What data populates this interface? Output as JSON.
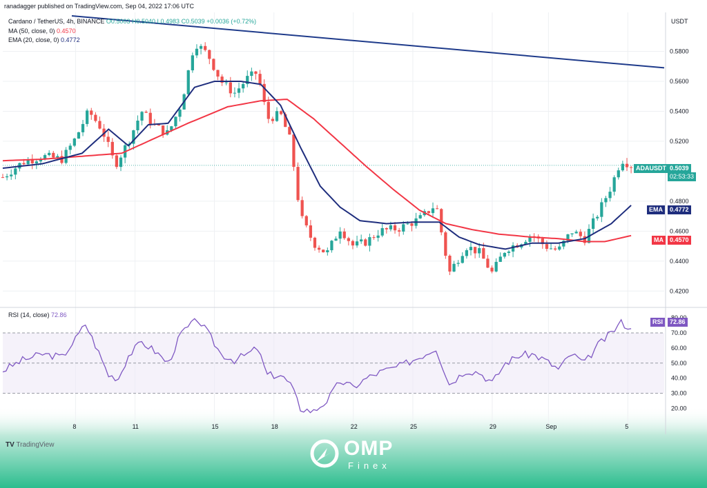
{
  "watermark": {
    "publisher": "ranadagger published on TradingView.com, Sep 04, 2022 17:06 UTC",
    "tv_logo_text": "TradingView",
    "brand_main": "OMP",
    "brand_sub": "Finex"
  },
  "legend": {
    "symbol": "Cardano / TetherUS, 4h, BINANCE",
    "o": "O0.5003",
    "h": "H0.5040",
    "l": "L0.4983",
    "c": "C0.5039",
    "change": "+0.0036 (+0.72%)",
    "ma_label": "MA (50, close, 0)",
    "ma_value": "0.4570",
    "ema_label": "EMA (20, close, 0)",
    "ema_value": "0.4772",
    "rsi_label": "RSI (14, close)",
    "rsi_value": "72.86"
  },
  "tags": {
    "price_symbol": "ADAUSDT",
    "price_value": "0.5039",
    "countdown": "02:53:33",
    "ema_name": "EMA",
    "ema_value": "0.4772",
    "ma_name": "MA",
    "ma_value": "0.4570",
    "rsi_name": "RSI",
    "rsi_value": "72.86"
  },
  "colors": {
    "up": "#26a69a",
    "down": "#ef5350",
    "ma": "#f23645",
    "ema": "#1e2d7d",
    "trendline": "#1e3a8a",
    "rsi": "#7e57c2",
    "band_fill": "#ede7f6",
    "footer_teal": "#2bbd8e"
  },
  "chart_data": [
    {
      "type": "candlestick",
      "currency_label": "USDT",
      "ylim": [
        0.41,
        0.606
      ],
      "y_ticks": [
        0.42,
        0.44,
        0.46,
        0.48,
        0.5,
        0.52,
        0.54,
        0.56,
        0.58
      ],
      "y_tick_labels": [
        "0.4200",
        "0.4400",
        "0.4600",
        "0.4800",
        "0.5000",
        "0.5200",
        "0.5400",
        "0.5600",
        "0.5800"
      ],
      "x_dates": [
        "8",
        "11",
        "15",
        "18",
        "22",
        "25",
        "29",
        "Sep",
        "5"
      ],
      "last_price": 0.5039,
      "trendline": [
        {
          "t": 0.0,
          "price": 0.608
        },
        {
          "t": 1.0,
          "price": 0.569
        }
      ],
      "keypoints": [
        {
          "t": 0.0,
          "price": 0.496
        },
        {
          "t": 0.03,
          "price": 0.506
        },
        {
          "t": 0.06,
          "price": 0.51
        },
        {
          "t": 0.09,
          "price": 0.508
        },
        {
          "t": 0.11,
          "price": 0.522
        },
        {
          "t": 0.13,
          "price": 0.54
        },
        {
          "t": 0.15,
          "price": 0.528
        },
        {
          "t": 0.17,
          "price": 0.504
        },
        {
          "t": 0.19,
          "price": 0.52
        },
        {
          "t": 0.21,
          "price": 0.54
        },
        {
          "t": 0.23,
          "price": 0.53
        },
        {
          "t": 0.25,
          "price": 0.525
        },
        {
          "t": 0.27,
          "price": 0.545
        },
        {
          "t": 0.29,
          "price": 0.586
        },
        {
          "t": 0.31,
          "price": 0.578
        },
        {
          "t": 0.33,
          "price": 0.56
        },
        {
          "t": 0.35,
          "price": 0.552
        },
        {
          "t": 0.37,
          "price": 0.562
        },
        {
          "t": 0.385,
          "price": 0.566
        },
        {
          "t": 0.4,
          "price": 0.535
        },
        {
          "t": 0.42,
          "price": 0.538
        },
        {
          "t": 0.435,
          "price": 0.52
        },
        {
          "t": 0.45,
          "price": 0.47
        },
        {
          "t": 0.47,
          "price": 0.452
        },
        {
          "t": 0.49,
          "price": 0.445
        },
        {
          "t": 0.51,
          "price": 0.462
        },
        {
          "t": 0.53,
          "price": 0.45
        },
        {
          "t": 0.55,
          "price": 0.453
        },
        {
          "t": 0.57,
          "price": 0.46
        },
        {
          "t": 0.6,
          "price": 0.462
        },
        {
          "t": 0.63,
          "price": 0.468
        },
        {
          "t": 0.655,
          "price": 0.478
        },
        {
          "t": 0.665,
          "price": 0.455
        },
        {
          "t": 0.675,
          "price": 0.432
        },
        {
          "t": 0.7,
          "price": 0.45
        },
        {
          "t": 0.72,
          "price": 0.446
        },
        {
          "t": 0.74,
          "price": 0.432
        },
        {
          "t": 0.76,
          "price": 0.448
        },
        {
          "t": 0.78,
          "price": 0.452
        },
        {
          "t": 0.8,
          "price": 0.458
        },
        {
          "t": 0.82,
          "price": 0.45
        },
        {
          "t": 0.84,
          "price": 0.447
        },
        {
          "t": 0.86,
          "price": 0.46
        },
        {
          "t": 0.88,
          "price": 0.455
        },
        {
          "t": 0.9,
          "price": 0.472
        },
        {
          "t": 0.92,
          "price": 0.49
        },
        {
          "t": 0.935,
          "price": 0.508
        },
        {
          "t": 0.95,
          "price": 0.5039
        }
      ],
      "ema20": [
        {
          "t": 0.0,
          "price": 0.502
        },
        {
          "t": 0.06,
          "price": 0.505
        },
        {
          "t": 0.12,
          "price": 0.512
        },
        {
          "t": 0.16,
          "price": 0.528
        },
        {
          "t": 0.19,
          "price": 0.517
        },
        {
          "t": 0.22,
          "price": 0.531
        },
        {
          "t": 0.25,
          "price": 0.532
        },
        {
          "t": 0.29,
          "price": 0.556
        },
        {
          "t": 0.32,
          "price": 0.56
        },
        {
          "t": 0.36,
          "price": 0.56
        },
        {
          "t": 0.39,
          "price": 0.558
        },
        {
          "t": 0.42,
          "price": 0.544
        },
        {
          "t": 0.45,
          "price": 0.516
        },
        {
          "t": 0.48,
          "price": 0.49
        },
        {
          "t": 0.51,
          "price": 0.476
        },
        {
          "t": 0.54,
          "price": 0.467
        },
        {
          "t": 0.58,
          "price": 0.465
        },
        {
          "t": 0.62,
          "price": 0.466
        },
        {
          "t": 0.66,
          "price": 0.466
        },
        {
          "t": 0.69,
          "price": 0.456
        },
        {
          "t": 0.72,
          "price": 0.451
        },
        {
          "t": 0.76,
          "price": 0.448
        },
        {
          "t": 0.8,
          "price": 0.452
        },
        {
          "t": 0.84,
          "price": 0.452
        },
        {
          "t": 0.88,
          "price": 0.455
        },
        {
          "t": 0.92,
          "price": 0.465
        },
        {
          "t": 0.95,
          "price": 0.4772
        }
      ],
      "ma50": [
        {
          "t": 0.0,
          "price": 0.507
        },
        {
          "t": 0.06,
          "price": 0.508
        },
        {
          "t": 0.12,
          "price": 0.51
        },
        {
          "t": 0.18,
          "price": 0.512
        },
        {
          "t": 0.22,
          "price": 0.52
        },
        {
          "t": 0.28,
          "price": 0.532
        },
        {
          "t": 0.34,
          "price": 0.543
        },
        {
          "t": 0.39,
          "price": 0.547
        },
        {
          "t": 0.43,
          "price": 0.548
        },
        {
          "t": 0.47,
          "price": 0.535
        },
        {
          "t": 0.51,
          "price": 0.519
        },
        {
          "t": 0.55,
          "price": 0.503
        },
        {
          "t": 0.59,
          "price": 0.488
        },
        {
          "t": 0.63,
          "price": 0.474
        },
        {
          "t": 0.67,
          "price": 0.465
        },
        {
          "t": 0.71,
          "price": 0.461
        },
        {
          "t": 0.75,
          "price": 0.458
        },
        {
          "t": 0.8,
          "price": 0.456
        },
        {
          "t": 0.84,
          "price": 0.455
        },
        {
          "t": 0.88,
          "price": 0.453
        },
        {
          "t": 0.91,
          "price": 0.453
        },
        {
          "t": 0.95,
          "price": 0.457
        }
      ]
    },
    {
      "type": "line",
      "name": "RSI",
      "ylim": [
        12,
        86
      ],
      "y_ticks": [
        20,
        30,
        40,
        50,
        60,
        70,
        80
      ],
      "y_tick_labels": [
        "20.00",
        "30.00",
        "40.00",
        "50.00",
        "60.00",
        "70.00",
        "80.00"
      ],
      "bands": {
        "upper": 70,
        "middle": 50,
        "lower": 30
      },
      "last_value": 72.86,
      "keypoints": [
        {
          "t": 0.0,
          "rsi": 45
        },
        {
          "t": 0.03,
          "rsi": 52
        },
        {
          "t": 0.06,
          "rsi": 56
        },
        {
          "t": 0.09,
          "rsi": 54
        },
        {
          "t": 0.11,
          "rsi": 66
        },
        {
          "t": 0.125,
          "rsi": 76
        },
        {
          "t": 0.14,
          "rsi": 62
        },
        {
          "t": 0.16,
          "rsi": 42
        },
        {
          "t": 0.175,
          "rsi": 40
        },
        {
          "t": 0.19,
          "rsi": 55
        },
        {
          "t": 0.21,
          "rsi": 64
        },
        {
          "t": 0.23,
          "rsi": 58
        },
        {
          "t": 0.25,
          "rsi": 50
        },
        {
          "t": 0.27,
          "rsi": 70
        },
        {
          "t": 0.295,
          "rsi": 79
        },
        {
          "t": 0.31,
          "rsi": 70
        },
        {
          "t": 0.33,
          "rsi": 56
        },
        {
          "t": 0.35,
          "rsi": 52
        },
        {
          "t": 0.37,
          "rsi": 56
        },
        {
          "t": 0.385,
          "rsi": 60
        },
        {
          "t": 0.4,
          "rsi": 42
        },
        {
          "t": 0.42,
          "rsi": 42
        },
        {
          "t": 0.435,
          "rsi": 36
        },
        {
          "t": 0.45,
          "rsi": 20
        },
        {
          "t": 0.47,
          "rsi": 18
        },
        {
          "t": 0.49,
          "rsi": 25
        },
        {
          "t": 0.51,
          "rsi": 38
        },
        {
          "t": 0.53,
          "rsi": 34
        },
        {
          "t": 0.55,
          "rsi": 40
        },
        {
          "t": 0.57,
          "rsi": 44
        },
        {
          "t": 0.6,
          "rsi": 48
        },
        {
          "t": 0.63,
          "rsi": 54
        },
        {
          "t": 0.655,
          "rsi": 60
        },
        {
          "t": 0.665,
          "rsi": 48
        },
        {
          "t": 0.675,
          "rsi": 36
        },
        {
          "t": 0.7,
          "rsi": 45
        },
        {
          "t": 0.72,
          "rsi": 44
        },
        {
          "t": 0.74,
          "rsi": 37
        },
        {
          "t": 0.76,
          "rsi": 50
        },
        {
          "t": 0.78,
          "rsi": 55
        },
        {
          "t": 0.8,
          "rsi": 56
        },
        {
          "t": 0.82,
          "rsi": 52
        },
        {
          "t": 0.84,
          "rsi": 46
        },
        {
          "t": 0.86,
          "rsi": 56
        },
        {
          "t": 0.88,
          "rsi": 50
        },
        {
          "t": 0.9,
          "rsi": 62
        },
        {
          "t": 0.92,
          "rsi": 70
        },
        {
          "t": 0.935,
          "rsi": 77
        },
        {
          "t": 0.95,
          "rsi": 72.86
        }
      ]
    }
  ]
}
